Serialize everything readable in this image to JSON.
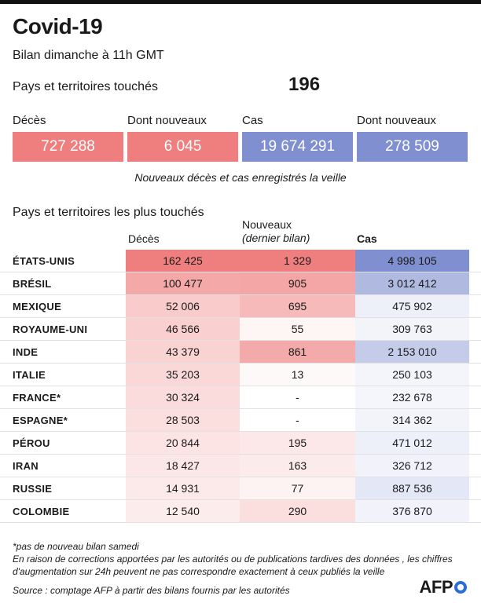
{
  "header": {
    "title": "Covid-19",
    "subtitle": "Bilan dimanche à 11h GMT",
    "countries_label": "Pays et territoires touchés",
    "countries_count": "196"
  },
  "stats": [
    {
      "label": "Décès",
      "value": "727 288",
      "color": "#ef7f7f"
    },
    {
      "label": "Dont nouveaux",
      "value": "6 045",
      "color": "#ef7f7f"
    },
    {
      "label": "Cas",
      "value": "19 674 291",
      "color": "#7f8fcf"
    },
    {
      "label": "Dont nouveaux",
      "value": "278 509",
      "color": "#7f8fcf"
    }
  ],
  "stats_note": "Nouveaux décès et cas enregistrés la veille",
  "table": {
    "title": "Pays et territoires les plus touchés",
    "col_deces": "Décès",
    "col_new_line1": "Nouveaux",
    "col_new_line2": "(dernier bilan)",
    "col_cas": "Cas",
    "rows": [
      {
        "country": "ÉTATS-UNIS",
        "deces": "162 425",
        "nouveaux": "1 329",
        "cas": "4 998 105",
        "deces_num": 162425,
        "nouveaux_num": 1329,
        "cas_num": 4998105
      },
      {
        "country": "BRÉSIL",
        "deces": "100 477",
        "nouveaux": "905",
        "cas": "3 012 412",
        "deces_num": 100477,
        "nouveaux_num": 905,
        "cas_num": 3012412
      },
      {
        "country": "MEXIQUE",
        "deces": "52 006",
        "nouveaux": "695",
        "cas": "475 902",
        "deces_num": 52006,
        "nouveaux_num": 695,
        "cas_num": 475902
      },
      {
        "country": "ROYAUME-UNI",
        "deces": "46 566",
        "nouveaux": "55",
        "cas": "309 763",
        "deces_num": 46566,
        "nouveaux_num": 55,
        "cas_num": 309763
      },
      {
        "country": "INDE",
        "deces": "43 379",
        "nouveaux": "861",
        "cas": "2 153 010",
        "deces_num": 43379,
        "nouveaux_num": 861,
        "cas_num": 2153010
      },
      {
        "country": "ITALIE",
        "deces": "35 203",
        "nouveaux": "13",
        "cas": "250 103",
        "deces_num": 35203,
        "nouveaux_num": 13,
        "cas_num": 250103
      },
      {
        "country": "FRANCE*",
        "deces": "30 324",
        "nouveaux": "-",
        "cas": "232 678",
        "deces_num": 30324,
        "nouveaux_num": 0,
        "cas_num": 232678
      },
      {
        "country": "ESPAGNE*",
        "deces": "28 503",
        "nouveaux": "-",
        "cas": "314 362",
        "deces_num": 28503,
        "nouveaux_num": 0,
        "cas_num": 314362
      },
      {
        "country": "PÉROU",
        "deces": "20 844",
        "nouveaux": "195",
        "cas": "471 012",
        "deces_num": 20844,
        "nouveaux_num": 195,
        "cas_num": 471012
      },
      {
        "country": "IRAN",
        "deces": "18 427",
        "nouveaux": "163",
        "cas": "326 712",
        "deces_num": 18427,
        "nouveaux_num": 163,
        "cas_num": 326712
      },
      {
        "country": "RUSSIE",
        "deces": "14 931",
        "nouveaux": "77",
        "cas": "887 536",
        "deces_num": 14931,
        "nouveaux_num": 77,
        "cas_num": 887536
      },
      {
        "country": "COLOMBIE",
        "deces": "12 540",
        "nouveaux": "290",
        "cas": "376 870",
        "deces_num": 12540,
        "nouveaux_num": 290,
        "cas_num": 376870
      }
    ]
  },
  "colors": {
    "red": "#ef7f7f",
    "blue": "#7f8fcf"
  },
  "footer": {
    "asterisk_note": "*pas de nouveau bilan samedi",
    "correction_line1": "En raison de corrections apportées par les autorités ou de publications tardives des données , les chiffres",
    "correction_line2": "d'augmentation sur 24h peuvent ne pas correspondre exactement à ceux publiés la veille",
    "source": "Source : comptage AFP à partir des bilans fournis par les autorités",
    "logo": "AFP"
  }
}
